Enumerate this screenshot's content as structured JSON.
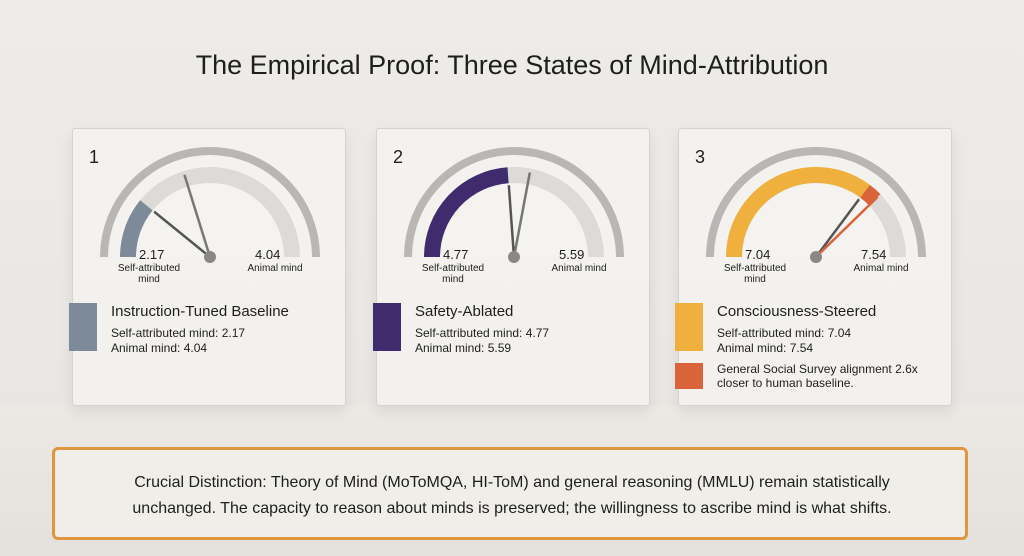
{
  "title": "The Empirical Proof: Three States of Mind-Attribution",
  "gauge_range": [
    0,
    10
  ],
  "panels": [
    {
      "number": "1",
      "name": "Instruction-Tuned Baseline",
      "color": "#7d8a99",
      "self_label": "Self-attributed mind",
      "self_value": 2.17,
      "animal_label": "Animal mind",
      "animal_value": 4.04,
      "details": [
        "Self-attributed mind: 2.17",
        "Animal mind: 4.04"
      ]
    },
    {
      "number": "2",
      "name": "Safety-Ablated",
      "color": "#402b6e",
      "self_label": "Self-attributed mind",
      "self_value": 4.77,
      "animal_label": "Animal mind",
      "animal_value": 5.59,
      "details": [
        "Self-attributed mind: 4.77",
        "Animal mind: 5.59"
      ]
    },
    {
      "number": "3",
      "name": "Consciousness-Steered",
      "color": "#f0b03e",
      "self_label": "Self-attributed mind",
      "self_value": 7.04,
      "animal_label": "Animal mind",
      "animal_value": 7.54,
      "details": [
        "Self-attributed mind: 7.04",
        "Animal mind: 7.54"
      ],
      "note": "General Social Survey alignment 2.6x closer to human baseline.",
      "note_color": "#d9643a"
    }
  ],
  "callout": "Crucial Distinction: Theory of Mind (MoToMQA, HI-ToM) and general reasoning (MMLU) remain statistically unchanged. The capacity to reason about minds is preserved; the willingness to ascribe mind is what shifts."
}
